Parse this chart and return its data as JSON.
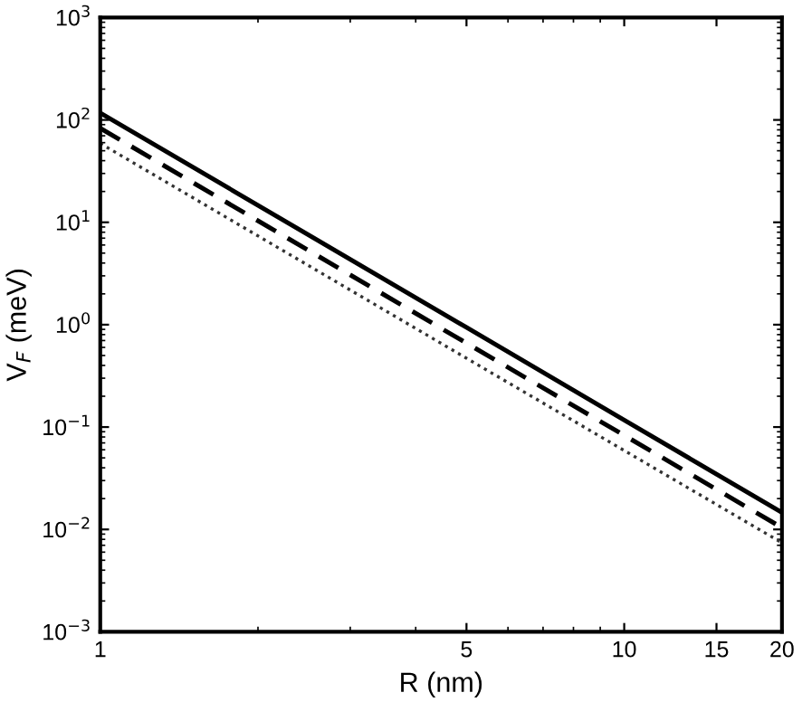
{
  "chart_data": {
    "type": "line",
    "xlabel": "R (nm)",
    "ylabel": "V$_{F}$ (meV)",
    "log": "xy",
    "xlim": [
      1,
      20
    ],
    "xticks": [
      1,
      5,
      10,
      15,
      20
    ],
    "ylim": [
      0.001,
      1000
    ],
    "yticks": [
      {
        "value": 0.001,
        "label": "10$^{−3}$"
      },
      {
        "value": 0.01,
        "label": "10$^{−2}$"
      },
      {
        "value": 0.1,
        "label": "10$^{−1}$"
      },
      {
        "value": 1,
        "label": "10$^{0}$"
      },
      {
        "value": 10,
        "label": "10$^{1}$"
      },
      {
        "value": 100,
        "label": "10$^{2}$"
      },
      {
        "value": 1000,
        "label": "10$^{3}$"
      }
    ],
    "marker": "none",
    "series": [
      {
        "color": "#000000",
        "line_style": "solid",
        "x": [
          1,
          5,
          10,
          20
        ],
        "values": [
          117,
          0.94,
          0.117,
          0.0146
        ]
      },
      {
        "color": "#000000",
        "line_style": "dashed",
        "x": [
          1,
          5,
          10,
          20
        ],
        "values": [
          83,
          0.66,
          0.083,
          0.0104
        ]
      },
      {
        "color": "#333333",
        "line_style": "dotted",
        "x": [
          1,
          5,
          10,
          20
        ],
        "values": [
          59,
          0.47,
          0.059,
          0.0074
        ]
      }
    ]
  }
}
